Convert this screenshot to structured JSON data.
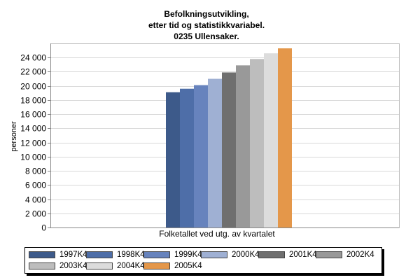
{
  "chart_data": {
    "type": "bar",
    "title": [
      "Befolkningsutvikling,",
      "etter tid og statistikkvariabel.",
      "0235 Ullensaker."
    ],
    "xlabel": "Folketallet ved utg. av kvartalet",
    "ylabel": "personer",
    "ylim": [
      0,
      26000
    ],
    "yticks": [
      0,
      2000,
      4000,
      6000,
      8000,
      10000,
      12000,
      14000,
      16000,
      18000,
      20000,
      22000,
      24000
    ],
    "ytick_labels": [
      "0",
      "2 000",
      "4 000",
      "6 000",
      "8 000",
      "10 000",
      "12 000",
      "14 000",
      "16 000",
      "18 000",
      "20 000",
      "22 000",
      "24 000"
    ],
    "grid": true,
    "legend_position": "bottom",
    "categories": [
      "Folketallet ved utg. av kvartalet"
    ],
    "series": [
      {
        "name": "1997K4",
        "values": [
          19100
        ],
        "color": "#3d5a8a"
      },
      {
        "name": "1998K4",
        "values": [
          19600
        ],
        "color": "#4e6ea8"
      },
      {
        "name": "1999K4",
        "values": [
          20100
        ],
        "color": "#6783bd"
      },
      {
        "name": "2000K4",
        "values": [
          21000
        ],
        "color": "#9fb0d3"
      },
      {
        "name": "2001K4",
        "values": [
          21900
        ],
        "color": "#6f6f6f"
      },
      {
        "name": "2002K4",
        "values": [
          22900
        ],
        "color": "#999999"
      },
      {
        "name": "2003K4",
        "values": [
          23800
        ],
        "color": "#bdbdbd"
      },
      {
        "name": "2004K4",
        "values": [
          24600
        ],
        "color": "#dcdcdc"
      },
      {
        "name": "2005K4",
        "values": [
          25300
        ],
        "color": "#e4974a"
      }
    ]
  }
}
